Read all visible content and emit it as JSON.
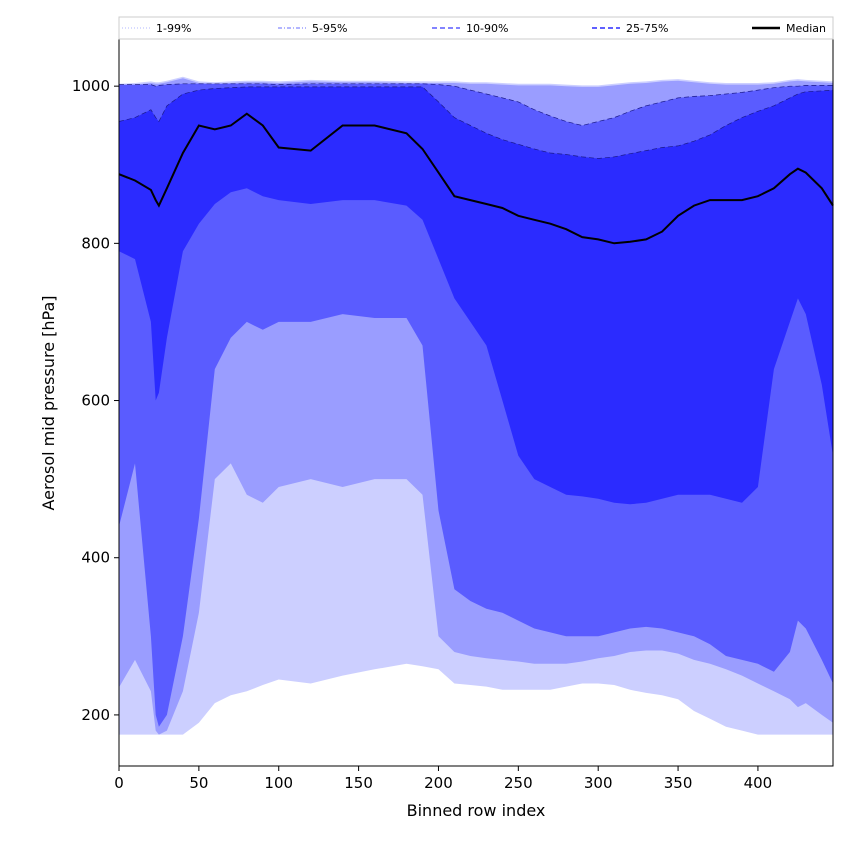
{
  "chart_data": {
    "type": "area",
    "xlabel": "Binned row index",
    "ylabel": "Aerosol mid pressure [hPa]",
    "xlim": [
      0,
      447
    ],
    "ylim": [
      135,
      1060
    ],
    "y_inverted": false,
    "xticks": [
      0,
      50,
      100,
      150,
      200,
      250,
      300,
      350,
      400
    ],
    "yticks": [
      200,
      400,
      600,
      800,
      1000
    ],
    "grid": false,
    "legend_position": "top, spanning full width (above plot)",
    "x": [
      0,
      10,
      20,
      23,
      25,
      30,
      40,
      50,
      60,
      70,
      80,
      90,
      100,
      120,
      140,
      160,
      180,
      190,
      200,
      210,
      220,
      230,
      240,
      250,
      260,
      270,
      280,
      290,
      300,
      310,
      320,
      330,
      340,
      350,
      360,
      370,
      380,
      390,
      400,
      410,
      420,
      425,
      430,
      440,
      447
    ],
    "series": [
      {
        "name": "1-99%",
        "color": "#cccfff",
        "linestyle": "dotted",
        "lower": [
          175,
          175,
          175,
          175,
          175,
          175,
          175,
          190,
          215,
          225,
          230,
          238,
          245,
          240,
          250,
          258,
          265,
          262,
          258,
          240,
          238,
          236,
          232,
          232,
          232,
          232,
          236,
          240,
          240,
          238,
          232,
          228,
          225,
          220,
          205,
          195,
          185,
          180,
          175,
          175,
          175,
          175,
          175,
          175,
          175
        ],
        "upper": [
          1003,
          1004,
          1006,
          1005,
          1005,
          1007,
          1012,
          1006,
          1005,
          1006,
          1007,
          1007,
          1006,
          1008,
          1007,
          1007,
          1006,
          1006,
          1006,
          1006,
          1005,
          1005,
          1004,
          1003,
          1003,
          1003,
          1002,
          1001,
          1001,
          1003,
          1005,
          1006,
          1008,
          1009,
          1007,
          1005,
          1004,
          1004,
          1004,
          1005,
          1008,
          1009,
          1008,
          1007,
          1006
        ]
      },
      {
        "name": "5-95%",
        "color": "#9a9dff",
        "linestyle": "dashdot",
        "lower": [
          235,
          270,
          230,
          180,
          175,
          180,
          230,
          330,
          500,
          520,
          480,
          470,
          490,
          500,
          490,
          500,
          500,
          480,
          300,
          280,
          275,
          272,
          270,
          268,
          265,
          265,
          265,
          268,
          272,
          275,
          280,
          282,
          282,
          278,
          270,
          265,
          258,
          250,
          240,
          230,
          220,
          210,
          215,
          200,
          190
        ]
      },
      {
        "name": "10-90%",
        "color": "#5a5cff",
        "linestyle": "dashed",
        "lower": [
          440,
          520,
          300,
          200,
          185,
          200,
          300,
          450,
          640,
          680,
          700,
          690,
          700,
          700,
          710,
          705,
          705,
          670,
          460,
          360,
          345,
          335,
          330,
          320,
          310,
          305,
          300,
          300,
          300,
          305,
          310,
          312,
          310,
          305,
          300,
          290,
          275,
          270,
          265,
          255,
          280,
          320,
          310,
          270,
          240
        ],
        "upper": [
          1002,
          1002,
          1002,
          1000,
          1001,
          1002,
          1003,
          1003,
          1003,
          1003,
          1003,
          1003,
          1002,
          1003,
          1003,
          1003,
          1003,
          1003,
          1002,
          1000,
          995,
          990,
          985,
          980,
          970,
          962,
          955,
          950,
          955,
          960,
          968,
          975,
          980,
          985,
          987,
          988,
          990,
          992,
          995,
          998,
          1000,
          1000,
          1001,
          1001,
          1001
        ]
      },
      {
        "name": "25-75%",
        "color": "#2b2bff",
        "linestyle": "dashed",
        "lower": [
          790,
          780,
          700,
          600,
          610,
          680,
          790,
          825,
          850,
          865,
          870,
          860,
          855,
          850,
          855,
          855,
          848,
          830,
          780,
          730,
          700,
          670,
          600,
          530,
          500,
          490,
          480,
          478,
          475,
          470,
          468,
          470,
          475,
          480,
          480,
          480,
          475,
          470,
          490,
          640,
          700,
          730,
          710,
          620,
          530
        ],
        "upper": [
          955,
          960,
          970,
          960,
          955,
          975,
          990,
          995,
          997,
          998,
          999,
          999,
          999,
          999,
          999,
          999,
          999,
          999,
          980,
          960,
          950,
          940,
          932,
          926,
          920,
          915,
          913,
          910,
          908,
          910,
          914,
          918,
          922,
          924,
          930,
          938,
          950,
          960,
          968,
          975,
          985,
          990,
          993,
          994,
          995
        ]
      },
      {
        "name": "Median",
        "color": "#000000",
        "linestyle": "solid",
        "values": [
          888,
          880,
          868,
          855,
          848,
          870,
          915,
          950,
          945,
          950,
          965,
          950,
          922,
          918,
          950,
          950,
          940,
          920,
          890,
          860,
          855,
          850,
          845,
          835,
          830,
          825,
          818,
          808,
          805,
          800,
          802,
          805,
          815,
          835,
          848,
          855,
          855,
          855,
          860,
          870,
          888,
          895,
          890,
          870,
          848
        ]
      }
    ]
  }
}
